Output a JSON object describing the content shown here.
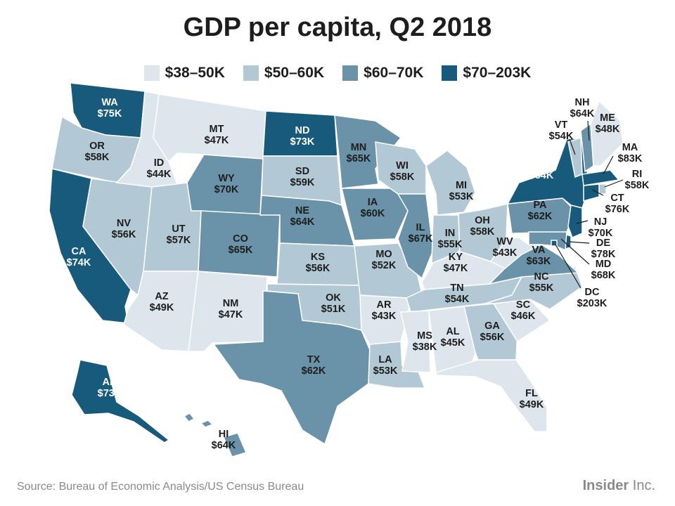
{
  "title": "GDP per capita, Q2 2018",
  "legend": [
    {
      "label": "$38–50K",
      "color": "#dde6ec"
    },
    {
      "label": "$50–60K",
      "color": "#b3c8d5"
    },
    {
      "label": "$60–70K",
      "color": "#6a92a8"
    },
    {
      "label": "$70–203K",
      "color": "#175a7c"
    }
  ],
  "states": [
    {
      "code": "WA",
      "value": "$75K",
      "bin": 3
    },
    {
      "code": "OR",
      "value": "$58K",
      "bin": 1
    },
    {
      "code": "CA",
      "value": "$74K",
      "bin": 3
    },
    {
      "code": "NV",
      "value": "$56K",
      "bin": 1
    },
    {
      "code": "ID",
      "value": "$44K",
      "bin": 0
    },
    {
      "code": "MT",
      "value": "$47K",
      "bin": 0
    },
    {
      "code": "WY",
      "value": "$70K",
      "bin": 2
    },
    {
      "code": "UT",
      "value": "$57K",
      "bin": 1
    },
    {
      "code": "AZ",
      "value": "$49K",
      "bin": 0
    },
    {
      "code": "CO",
      "value": "$65K",
      "bin": 2
    },
    {
      "code": "NM",
      "value": "$47K",
      "bin": 0
    },
    {
      "code": "ND",
      "value": "$73K",
      "bin": 3
    },
    {
      "code": "SD",
      "value": "$59K",
      "bin": 1
    },
    {
      "code": "NE",
      "value": "$64K",
      "bin": 2
    },
    {
      "code": "KS",
      "value": "$56K",
      "bin": 1
    },
    {
      "code": "OK",
      "value": "$51K",
      "bin": 1
    },
    {
      "code": "TX",
      "value": "$62K",
      "bin": 2
    },
    {
      "code": "MN",
      "value": "$65K",
      "bin": 2
    },
    {
      "code": "IA",
      "value": "$60K",
      "bin": 2
    },
    {
      "code": "MO",
      "value": "$52K",
      "bin": 1
    },
    {
      "code": "AR",
      "value": "$43K",
      "bin": 0
    },
    {
      "code": "LA",
      "value": "$53K",
      "bin": 1
    },
    {
      "code": "WI",
      "value": "$58K",
      "bin": 1
    },
    {
      "code": "IL",
      "value": "$67K",
      "bin": 2
    },
    {
      "code": "MI",
      "value": "$53K",
      "bin": 1
    },
    {
      "code": "IN",
      "value": "$55K",
      "bin": 1
    },
    {
      "code": "OH",
      "value": "$58K",
      "bin": 1
    },
    {
      "code": "KY",
      "value": "$47K",
      "bin": 0
    },
    {
      "code": "TN",
      "value": "$54K",
      "bin": 1
    },
    {
      "code": "MS",
      "value": "$38K",
      "bin": 0
    },
    {
      "code": "AL",
      "value": "$45K",
      "bin": 0
    },
    {
      "code": "GA",
      "value": "$56K",
      "bin": 1
    },
    {
      "code": "FL",
      "value": "$49K",
      "bin": 0
    },
    {
      "code": "SC",
      "value": "$46K",
      "bin": 0
    },
    {
      "code": "NC",
      "value": "$55K",
      "bin": 1
    },
    {
      "code": "VA",
      "value": "$63K",
      "bin": 2
    },
    {
      "code": "WV",
      "value": "$43K",
      "bin": 0
    },
    {
      "code": "PA",
      "value": "$62K",
      "bin": 2
    },
    {
      "code": "NY",
      "value": "$84K",
      "bin": 3
    },
    {
      "code": "VT",
      "value": "$54K",
      "bin": 1
    },
    {
      "code": "NH",
      "value": "$64K",
      "bin": 2
    },
    {
      "code": "ME",
      "value": "$48K",
      "bin": 0
    },
    {
      "code": "MA",
      "value": "$83K",
      "bin": 3
    },
    {
      "code": "RI",
      "value": "$58K",
      "bin": 1
    },
    {
      "code": "CT",
      "value": "$76K",
      "bin": 3
    },
    {
      "code": "NJ",
      "value": "$70K",
      "bin": 3
    },
    {
      "code": "DE",
      "value": "$78K",
      "bin": 3
    },
    {
      "code": "MD",
      "value": "$68K",
      "bin": 2
    },
    {
      "code": "DC",
      "value": "$203K",
      "bin": 3
    },
    {
      "code": "AK",
      "value": "$73K",
      "bin": 3
    },
    {
      "code": "HI",
      "value": "$64K",
      "bin": 2
    }
  ],
  "source": "Source: Bureau of Economic Analysis/US Census Bureau",
  "brand": {
    "bold": "Insider",
    "light": " Inc."
  }
}
